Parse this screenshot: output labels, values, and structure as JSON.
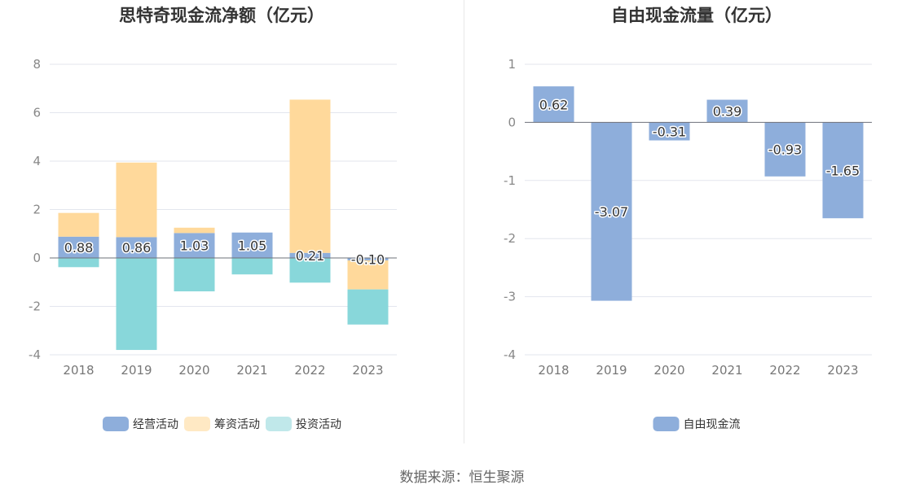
{
  "chart_data": [
    {
      "type": "bar",
      "stacked": true,
      "title": "思特奇现金流净额（亿元）",
      "categories": [
        "2018",
        "2019",
        "2020",
        "2021",
        "2022",
        "2023"
      ],
      "series": [
        {
          "name": "经营活动",
          "color": "#8eaedb",
          "values": [
            0.88,
            0.86,
            1.03,
            1.05,
            0.21,
            -0.1
          ]
        },
        {
          "name": "筹资活动",
          "color": "#ffd99b",
          "values": [
            0.98,
            3.08,
            0.22,
            0.0,
            6.33,
            -1.2
          ]
        },
        {
          "name": "投资活动",
          "color": "#88d7da",
          "values": [
            -0.38,
            -3.8,
            -1.38,
            -0.68,
            -1.02,
            -1.45
          ]
        }
      ],
      "data_labels": [
        "0.88",
        "0.86",
        "1.03",
        "1.05",
        "0.21",
        "-0.10"
      ],
      "y_ticks": [
        "8",
        "6",
        "4",
        "2",
        "0",
        "-2",
        "-4"
      ],
      "ylim": [
        -4,
        8
      ],
      "legend_position": "bottom",
      "legend_colors": [
        "#8eaedb",
        "#ffe9c4",
        "#c0e8ea"
      ]
    },
    {
      "type": "bar",
      "title": "自由现金流量（亿元）",
      "categories": [
        "2018",
        "2019",
        "2020",
        "2021",
        "2022",
        "2023"
      ],
      "series": [
        {
          "name": "自由现金流",
          "color": "#8eaedb",
          "values": [
            0.62,
            -3.07,
            -0.31,
            0.39,
            -0.93,
            -1.65
          ]
        }
      ],
      "data_labels": [
        "0.62",
        "-3.07",
        "-0.31",
        "0.39",
        "-0.93",
        "-1.65"
      ],
      "y_ticks": [
        "1",
        "0",
        "-1",
        "-2",
        "-3",
        "-4"
      ],
      "ylim": [
        -4,
        1
      ],
      "legend_position": "bottom",
      "legend_colors": [
        "#8eaedb"
      ]
    }
  ],
  "footer": {
    "source": "数据来源：恒生聚源"
  }
}
